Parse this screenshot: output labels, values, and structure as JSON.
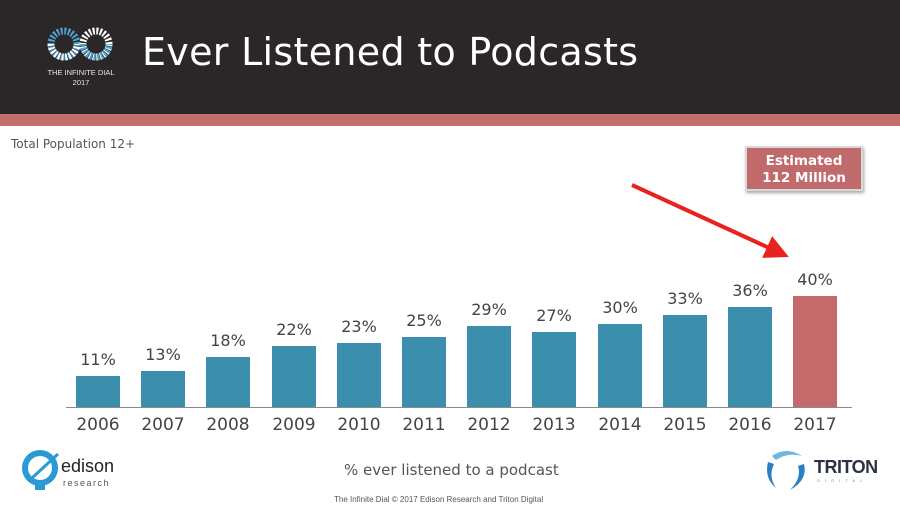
{
  "header": {
    "title": "Ever Listened to Podcasts",
    "logo_line1": "THE INFINITE DIAL",
    "logo_line2": "2017"
  },
  "subtitle": "Total Population 12+",
  "callout": {
    "line1": "Estimated",
    "line2": "112 Million"
  },
  "caption": "% ever listened to a podcast",
  "footer": "The Infinite Dial  © 2017 Edison Research and Triton Digital",
  "logos": {
    "edison_word": "edison",
    "edison_sub": "research",
    "triton_word": "TRITON",
    "triton_sub": "DIGITAL"
  },
  "colors": {
    "header_bg": "#2b2627",
    "stripe": "#c46f6e",
    "bar": "#3b8fad",
    "bar_highlight": "#c46a6a",
    "arrow": "#e8231f"
  },
  "chart_data": {
    "type": "bar",
    "title": "Ever Listened to Podcasts",
    "subtitle": "Total Population 12+",
    "xlabel": "% ever listened to a podcast",
    "ylabel": "",
    "categories": [
      "2006",
      "2007",
      "2008",
      "2009",
      "2010",
      "2011",
      "2012",
      "2013",
      "2014",
      "2015",
      "2016",
      "2017"
    ],
    "values": [
      11,
      13,
      18,
      22,
      23,
      25,
      29,
      27,
      30,
      33,
      36,
      40
    ],
    "labels": [
      "11%",
      "13%",
      "18%",
      "22%",
      "23%",
      "25%",
      "29%",
      "27%",
      "30%",
      "33%",
      "36%",
      "40%"
    ],
    "highlight": {
      "category": "2017",
      "annotation": "Estimated 112 Million"
    },
    "ylim": [
      0,
      45
    ],
    "grid": false,
    "legend": "none"
  }
}
